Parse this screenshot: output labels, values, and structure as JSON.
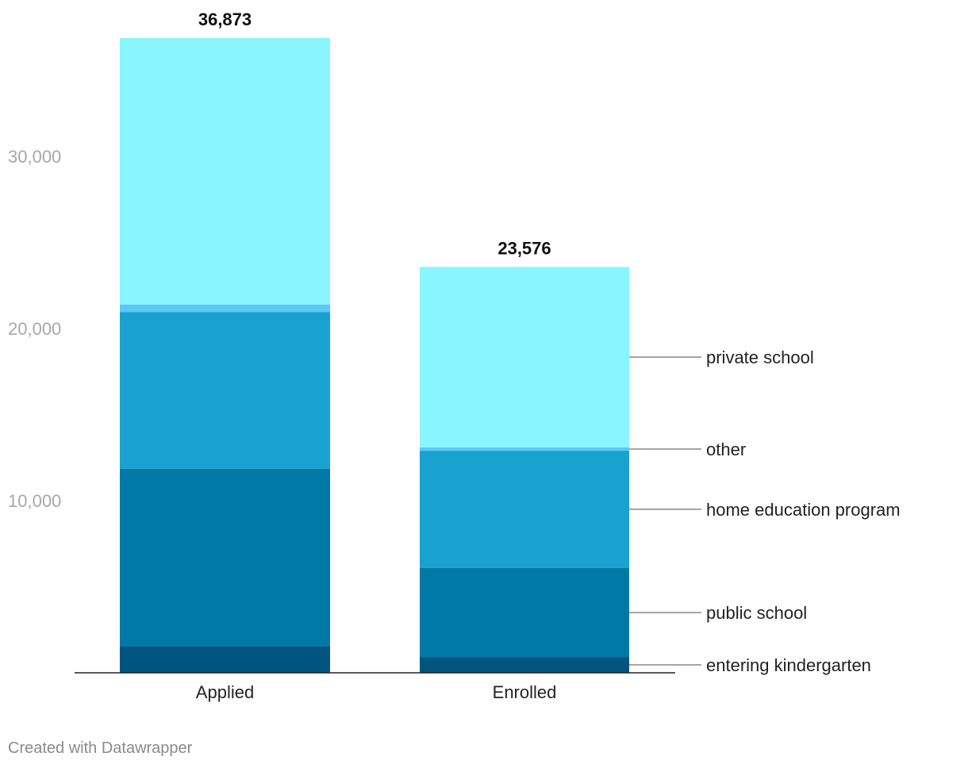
{
  "chart_data": {
    "type": "bar",
    "stacked": true,
    "categories": [
      "Applied",
      "Enrolled"
    ],
    "totals": [
      "36,873",
      "23,576"
    ],
    "series": [
      {
        "name": "entering kindergarten",
        "color": "#005580",
        "values": [
          1550,
          900
        ]
      },
      {
        "name": "public school",
        "color": "#0079a6",
        "values": [
          10300,
          5200
        ]
      },
      {
        "name": "home education program",
        "color": "#19a2cf",
        "values": [
          9100,
          6800
        ]
      },
      {
        "name": "other",
        "color": "#5cc8f5",
        "values": [
          450,
          200
        ]
      },
      {
        "name": "private school",
        "color": "#88f5ff",
        "values": [
          15473,
          10476
        ]
      }
    ],
    "ylim": [
      0,
      36873
    ],
    "yticks": [
      {
        "value": 10000,
        "label": "10,000"
      },
      {
        "value": 20000,
        "label": "20,000"
      },
      {
        "value": 30000,
        "label": "30,000"
      }
    ],
    "grid": false,
    "legend": "inline-right",
    "legend_color": "#888888",
    "title": "",
    "xlabel": "",
    "ylabel": ""
  },
  "footer": {
    "credit": "Created with Datawrapper"
  }
}
